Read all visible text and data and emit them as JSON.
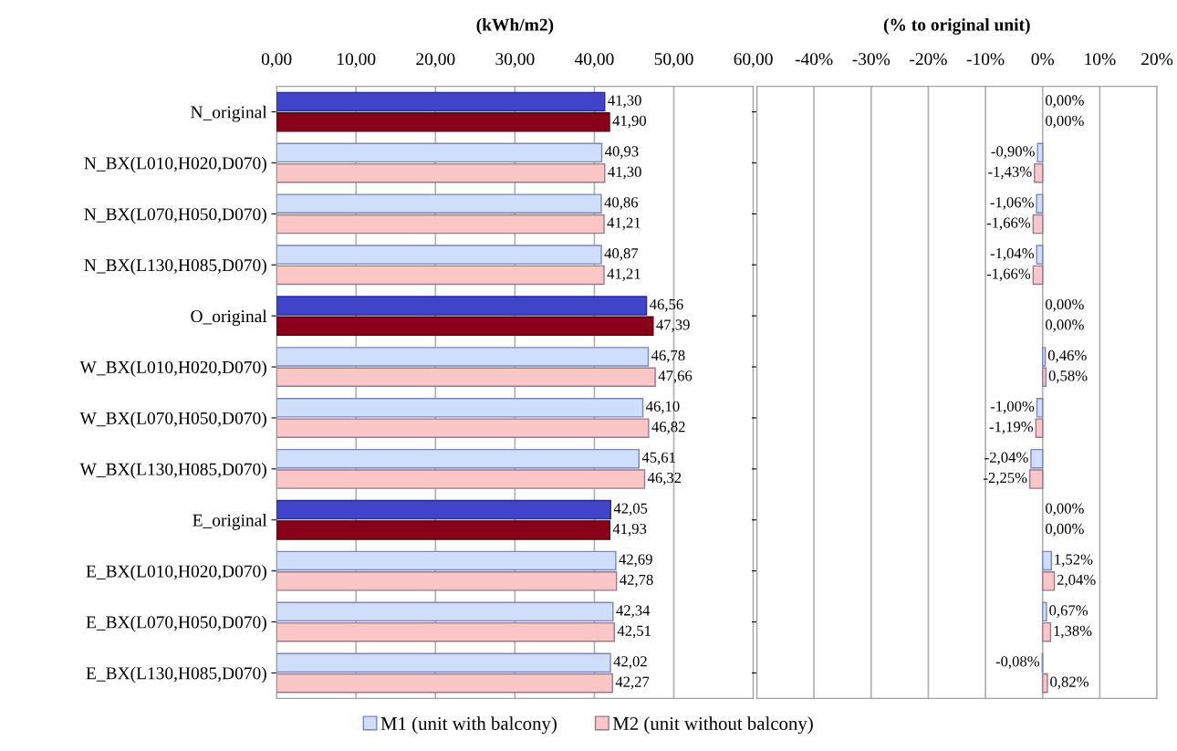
{
  "chart_data": [
    {
      "type": "bar",
      "orientation": "horizontal",
      "title": "(kWh/m2)",
      "categories": [
        "N_original",
        "N_BX(L010,H020,D070)",
        "N_BX(L070,H050,D070)",
        "N_BX(L130,H085,D070)",
        "O_original",
        "W_BX(L010,H020,D070)",
        "W_BX(L070,H050,D070)",
        "W_BX(L130,H085,D070)",
        "E_original",
        "E_BX(L010,H020,D070)",
        "E_BX(L070,H050,D070)",
        "E_BX(L130,H085,D070)"
      ],
      "series": [
        {
          "name": "M1 (unit with balcony)",
          "color": "#cfdffb",
          "colors": [
            "#3f44c8",
            "#cfdffb",
            "#cfdffb",
            "#cfdffb",
            "#3f44c8",
            "#cfdffb",
            "#cfdffb",
            "#cfdffb",
            "#3f44c8",
            "#cfdffb",
            "#cfdffb",
            "#cfdffb"
          ],
          "values": [
            41.3,
            40.93,
            40.86,
            40.87,
            46.56,
            46.78,
            46.1,
            45.61,
            42.05,
            42.69,
            42.34,
            42.02
          ],
          "value_labels": [
            "41,30",
            "40,93",
            "40,86",
            "40,87",
            "46,56",
            "46,78",
            "46,10",
            "45,61",
            "42,05",
            "42,69",
            "42,34",
            "42,02"
          ]
        },
        {
          "name": "M2 (unit without balcony)",
          "color": "#fbc6c6",
          "colors": [
            "#8a0018",
            "#fbc6c6",
            "#fbc6c6",
            "#fbc6c6",
            "#8a0018",
            "#fbc6c6",
            "#fbc6c6",
            "#fbc6c6",
            "#8a0018",
            "#fbc6c6",
            "#fbc6c6",
            "#fbc6c6"
          ],
          "values": [
            41.9,
            41.3,
            41.21,
            41.21,
            47.39,
            47.66,
            46.82,
            46.32,
            41.93,
            42.78,
            42.51,
            42.27
          ],
          "value_labels": [
            "41,90",
            "41,30",
            "41,21",
            "41,21",
            "47,39",
            "47,66",
            "46,82",
            "46,32",
            "41,93",
            "42,78",
            "42,51",
            "42,27"
          ]
        }
      ],
      "xlim": [
        0,
        60
      ],
      "xticks": [
        {
          "value": 0,
          "label": "0,00"
        },
        {
          "value": 10,
          "label": "10,00"
        },
        {
          "value": 20,
          "label": "20,00"
        },
        {
          "value": 30,
          "label": "30,00"
        },
        {
          "value": 40,
          "label": "40,00"
        },
        {
          "value": 50,
          "label": "50,00"
        },
        {
          "value": 60,
          "label": "60,00"
        }
      ],
      "grid": "x",
      "legend": "bottom"
    },
    {
      "type": "bar",
      "orientation": "horizontal",
      "title": "(% to original unit)",
      "categories": [
        null,
        null,
        null,
        null,
        null,
        null,
        null,
        null,
        null,
        null,
        null,
        null
      ],
      "series": [
        {
          "color": "#cfdffb",
          "values": [
            0.0,
            -0.9,
            -1.06,
            -1.04,
            0.0,
            0.46,
            -1.0,
            -2.04,
            0.0,
            1.52,
            0.67,
            -0.08
          ],
          "value_labels": [
            "0,00%",
            "-0,90%",
            "-1,06%",
            "-1,04%",
            "0,00%",
            "0,46%",
            "-1,00%",
            "-2,04%",
            "0,00%",
            "1,52%",
            "0,67%",
            "-0,08%"
          ]
        },
        {
          "color": "#fbc6c6",
          "values": [
            0.0,
            -1.43,
            -1.66,
            -1.66,
            0.0,
            0.58,
            -1.19,
            -2.25,
            0.0,
            2.04,
            1.38,
            0.82
          ],
          "value_labels": [
            "0,00%",
            "-1,43%",
            "-1,66%",
            "-1,66%",
            "0,00%",
            "0,58%",
            "-1,19%",
            "-2,25%",
            "0,00%",
            "2,04%",
            "1,38%",
            "0,82%"
          ]
        }
      ],
      "xlim": [
        -50,
        20
      ],
      "xticks": [
        {
          "value": -50,
          "label": null
        },
        {
          "value": -40,
          "label": "-40%"
        },
        {
          "value": -30,
          "label": "-30%"
        },
        {
          "value": -20,
          "label": "-20%"
        },
        {
          "value": -10,
          "label": "-10%"
        },
        {
          "value": 0,
          "label": "0%"
        },
        {
          "value": 10,
          "label": "10%"
        },
        {
          "value": 20,
          "label": "20%"
        }
      ],
      "grid": "x",
      "tick_labels": "x"
    }
  ]
}
